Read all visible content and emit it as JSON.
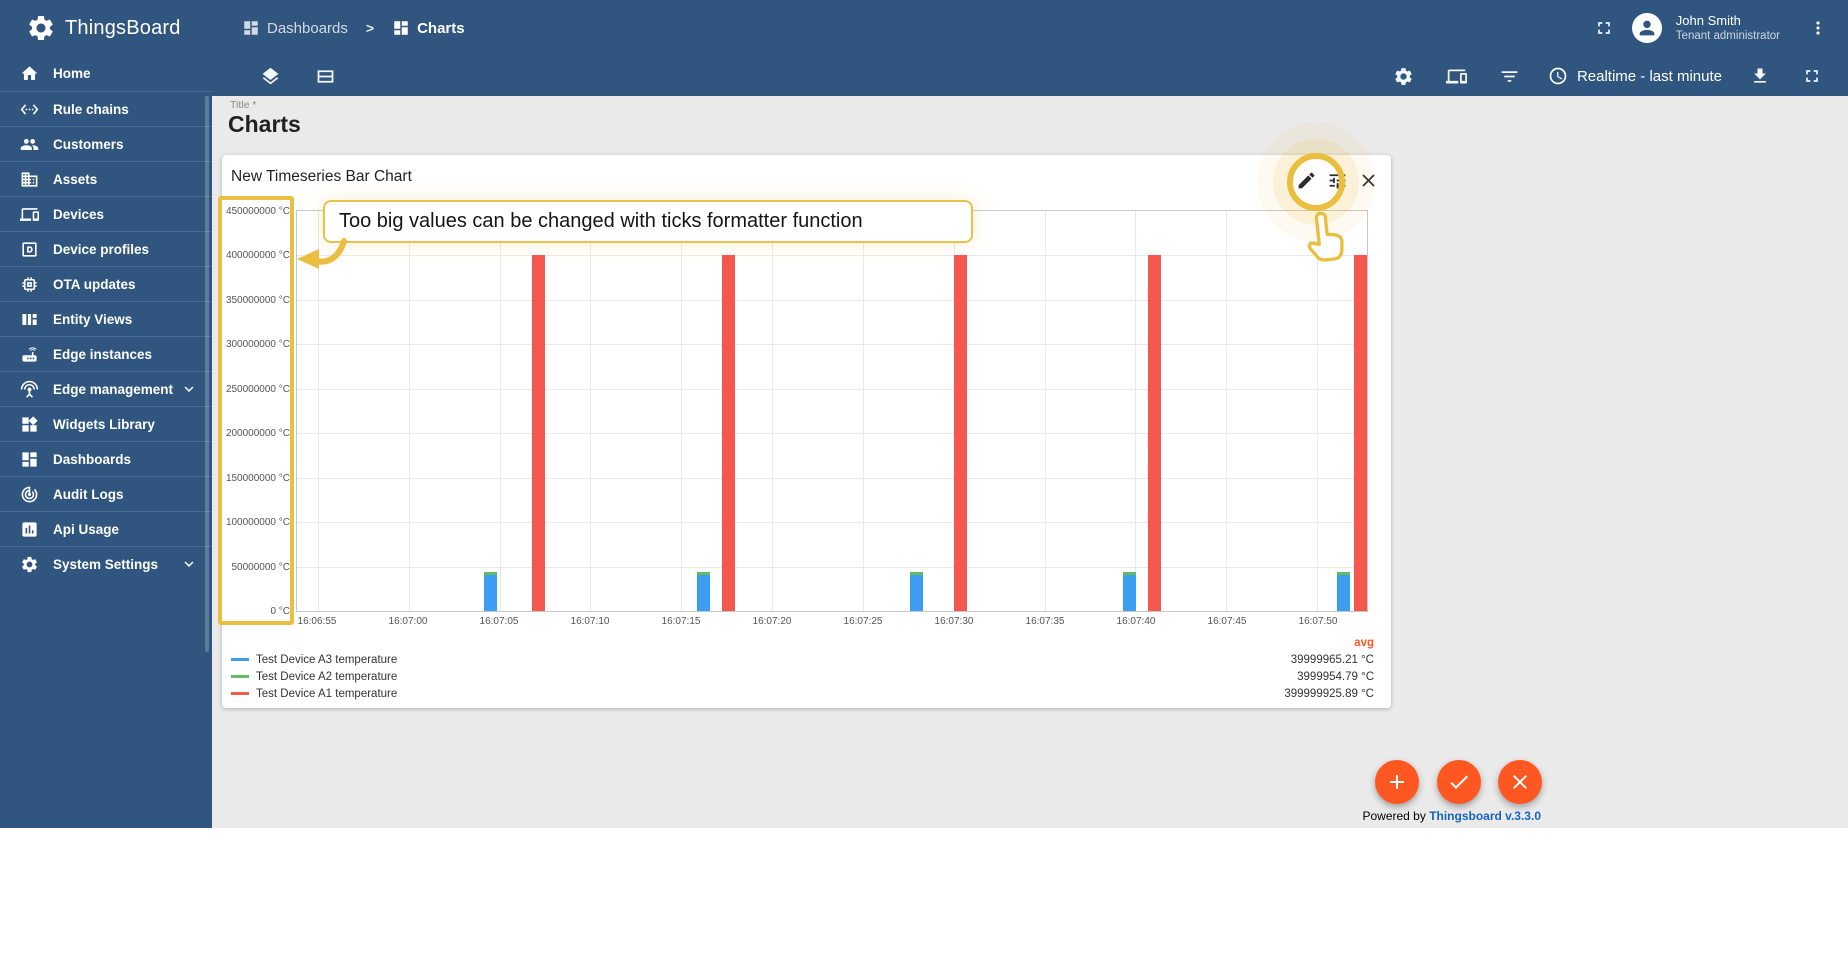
{
  "app": {
    "name": "ThingsBoard",
    "powered_by_prefix": "Powered by ",
    "powered_by_link": "Thingsboard v.3.3.0"
  },
  "colors": {
    "primary": "#305680",
    "accent": "#ff5722",
    "highlight": "#eabe3f",
    "series_blue": "#3d9df3",
    "series_green": "#64bb63",
    "series_red": "#f4574d",
    "link": "#1565c0"
  },
  "header": {
    "breadcrumb": [
      {
        "label": "Dashboards",
        "icon": "dashboards"
      },
      {
        "label": "Charts",
        "icon": "dashboards"
      }
    ],
    "separator": ">",
    "user": {
      "name": "John Smith",
      "role": "Tenant administrator"
    },
    "action_icons": [
      "fullscreen",
      "more-vert"
    ]
  },
  "subbar": {
    "left_icons": [
      "layers",
      "layouts"
    ],
    "right_icons": [
      "settings",
      "entities",
      "filter"
    ],
    "timewindow_icon": "clock",
    "timewindow_label": "Realtime - last minute",
    "trailing_icons": [
      "download",
      "fullscreen"
    ]
  },
  "sidebar": {
    "items": [
      {
        "label": "Home",
        "icon": "home"
      },
      {
        "label": "Rule chains",
        "icon": "rule-chains"
      },
      {
        "label": "Customers",
        "icon": "customers"
      },
      {
        "label": "Assets",
        "icon": "assets"
      },
      {
        "label": "Devices",
        "icon": "devices"
      },
      {
        "label": "Device profiles",
        "icon": "device-profiles"
      },
      {
        "label": "OTA updates",
        "icon": "ota-updates"
      },
      {
        "label": "Entity Views",
        "icon": "entity-views"
      },
      {
        "label": "Edge instances",
        "icon": "edge-instances"
      },
      {
        "label": "Edge management",
        "icon": "edge-management",
        "expandable": true
      },
      {
        "label": "Widgets Library",
        "icon": "widgets-library"
      },
      {
        "label": "Dashboards",
        "icon": "dashboards"
      },
      {
        "label": "Audit Logs",
        "icon": "audit-logs"
      },
      {
        "label": "Api Usage",
        "icon": "api-usage"
      },
      {
        "label": "System Settings",
        "icon": "system-settings",
        "expandable": true
      }
    ]
  },
  "page": {
    "title_label": "Title *",
    "title": "Charts"
  },
  "widget": {
    "title": "New Timeseries Bar Chart",
    "actions": [
      "edit",
      "tune",
      "close"
    ]
  },
  "annotation": {
    "callout": "Too big values can be changed with ticks formatter function"
  },
  "legend": {
    "avg_label": "avg",
    "items": [
      {
        "label": "Test Device A3 temperature",
        "avg": "39999965.21 °C",
        "color": "#3d9df3"
      },
      {
        "label": "Test Device A2 temperature",
        "avg": "3999954.79 °C",
        "color": "#64bb63"
      },
      {
        "label": "Test Device A1 temperature",
        "avg": "399999925.89 °C",
        "color": "#f4574d"
      }
    ]
  },
  "fabs": [
    {
      "icon": "add"
    },
    {
      "icon": "check"
    },
    {
      "icon": "close"
    }
  ],
  "chart_data": {
    "type": "bar",
    "title": "New Timeseries Bar Chart",
    "unit": "°C",
    "grid": true,
    "legend_position": "bottom",
    "ylim": [
      0,
      450000000
    ],
    "y_tick_labels": [
      "450000000 °C",
      "400000000 °C",
      "350000000 °C",
      "300000000 °C",
      "250000000 °C",
      "200000000 °C",
      "150000000 °C",
      "100000000 °C",
      "50000000 °C",
      "0 °C"
    ],
    "x_tick_labels": [
      "16:06:55",
      "16:07:00",
      "16:07:05",
      "16:07:10",
      "16:07:15",
      "16:07:20",
      "16:07:25",
      "16:07:30",
      "16:07:35",
      "16:07:40",
      "16:07:45",
      "16:07:50"
    ],
    "series": [
      {
        "name": "Test Device A3 temperature",
        "color": "#3d9df3",
        "values": [
          40000000,
          40000000,
          40000000,
          40000000,
          40000000
        ],
        "avg": 39999965.21
      },
      {
        "name": "Test Device A2 temperature",
        "color": "#64bb63",
        "values": [
          4000000,
          4000000,
          4000000,
          4000000,
          4000000
        ],
        "avg": 3999954.79,
        "stacked_on": "Test Device A3 temperature"
      },
      {
        "name": "Test Device A1 temperature",
        "color": "#f4574d",
        "values": [
          400000000,
          400000000,
          400000000,
          400000000,
          400000000
        ],
        "avg": 399999925.89
      }
    ],
    "bar_x_pct": {
      "a3_blue": [
        18.1,
        38.0,
        57.9,
        77.8,
        97.8
      ],
      "a2_green": [
        18.1,
        38.0,
        57.9,
        77.8,
        97.8
      ],
      "a1_red": [
        22.6,
        40.3,
        62.0,
        80.1,
        99.4
      ]
    }
  }
}
